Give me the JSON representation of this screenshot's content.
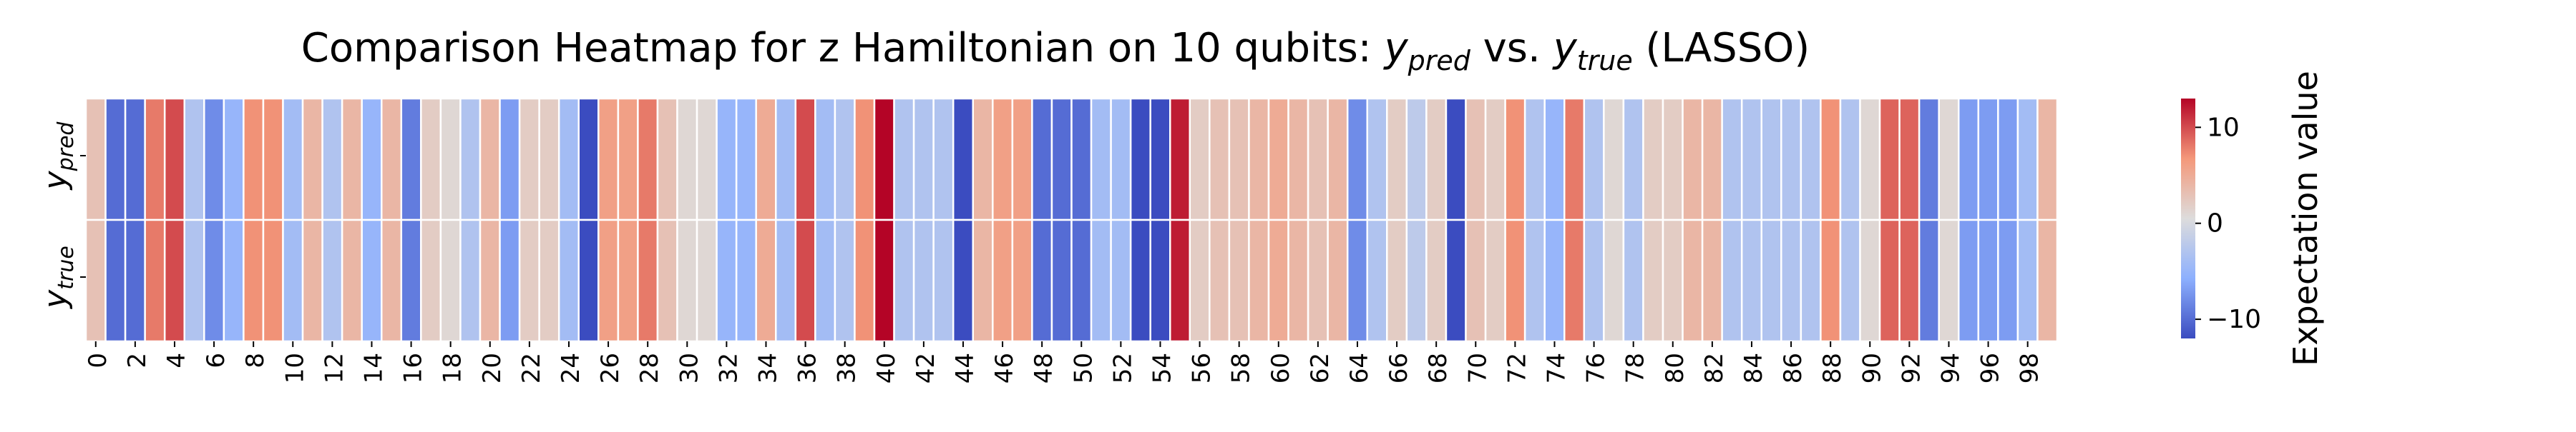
{
  "chart_data": {
    "type": "heatmap",
    "title_prefix": "Comparison Heatmap for z Hamiltonian on 10 qubits: ",
    "title_y1_base": "y",
    "title_y1_sub": "pred",
    "title_mid": " vs. ",
    "title_y2_base": "y",
    "title_y2_sub": "true",
    "title_suffix": " (LASSO)",
    "row_labels": [
      {
        "base": "y",
        "sub": "pred"
      },
      {
        "base": "y",
        "sub": "true"
      }
    ],
    "x_tick_labels": [
      "0",
      "2",
      "4",
      "6",
      "8",
      "10",
      "12",
      "14",
      "16",
      "18",
      "20",
      "22",
      "24",
      "26",
      "28",
      "30",
      "32",
      "34",
      "36",
      "38",
      "40",
      "42",
      "44",
      "46",
      "48",
      "50",
      "52",
      "54",
      "56",
      "58",
      "60",
      "62",
      "64",
      "66",
      "68",
      "70",
      "72",
      "74",
      "76",
      "78",
      "80",
      "82",
      "84",
      "86",
      "88",
      "90",
      "92",
      "94",
      "96",
      "98"
    ],
    "values": [
      3,
      -10,
      -10,
      8,
      10,
      -3,
      -8,
      -5,
      7,
      7,
      -4,
      4,
      -3,
      4,
      -5,
      4,
      -9,
      2,
      1,
      -3,
      4,
      -7,
      2,
      2,
      -4,
      -12,
      6,
      6,
      8,
      3,
      1,
      1,
      -5,
      -5,
      5,
      -4,
      10,
      -4,
      -3,
      7,
      13,
      -3,
      -3,
      -3,
      -12,
      4,
      6,
      6,
      -10,
      -10,
      -10,
      -4,
      -4,
      -12,
      -12,
      12,
      2,
      3,
      3,
      4,
      5,
      4,
      3,
      4,
      -8,
      -3,
      2,
      -2,
      2,
      -12,
      3,
      2,
      7,
      -3,
      -5,
      8,
      -3,
      1,
      -3,
      2,
      2,
      4,
      4,
      -3,
      -3,
      -3,
      -3,
      -3,
      7,
      -3,
      1,
      9,
      9,
      -9,
      1,
      -7,
      -7,
      -7,
      -4,
      4
    ],
    "colorbar": {
      "label": "Expectation value",
      "tick_labels": [
        "10",
        "0",
        "−10"
      ],
      "tick_values": [
        10,
        0,
        -10
      ],
      "vmin": -12,
      "vmax": 13,
      "colormap": "coolwarm"
    }
  }
}
